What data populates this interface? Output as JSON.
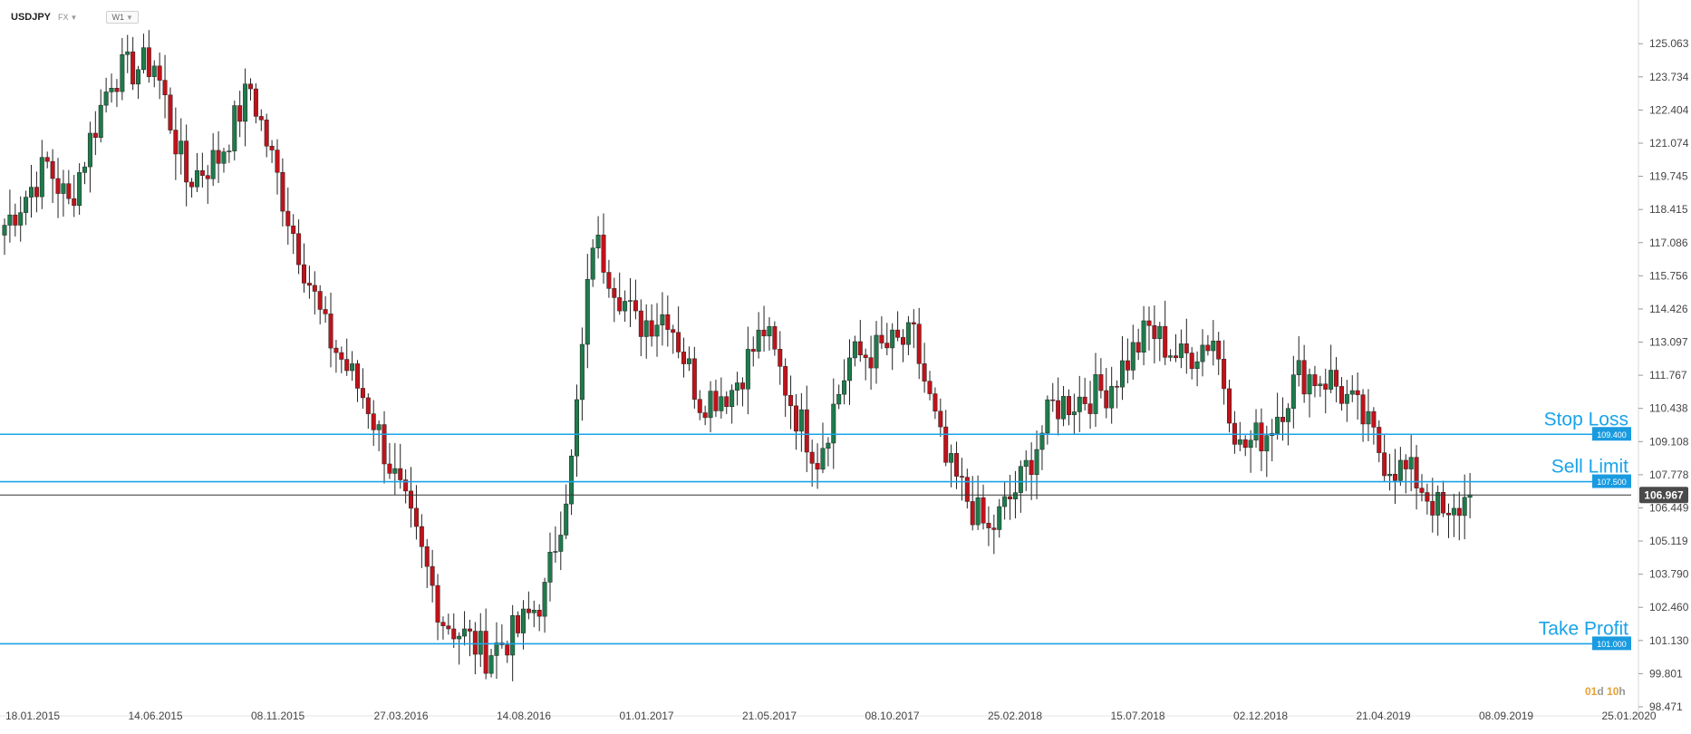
{
  "header": {
    "symbol": "USDJPY",
    "market": "FX",
    "timeframe": "W1"
  },
  "countdown": {
    "days": "01",
    "d_label": "d",
    "hours": "10",
    "h_label": "h"
  },
  "colors": {
    "up": "#1e7b4b",
    "down": "#c1121a",
    "level_line": "#1aa3e8",
    "current_price_bg": "#4a4a4a",
    "axis_text": "#444444"
  },
  "chart_data": {
    "type": "candlestick",
    "title": "",
    "y_ticks": [
      "125.063",
      "123.734",
      "122.404",
      "121.074",
      "119.745",
      "118.415",
      "117.086",
      "115.756",
      "114.426",
      "113.097",
      "111.767",
      "110.438",
      "109.108",
      "107.778",
      "106.449",
      "105.119",
      "103.790",
      "102.460",
      "101.130",
      "99.801",
      "98.471"
    ],
    "ylim": [
      98.471,
      125.726
    ],
    "x_labels": [
      "18.01.2015",
      "14.06.2015",
      "08.11.2015",
      "27.03.2016",
      "14.08.2016",
      "01.01.2017",
      "21.05.2017",
      "08.10.2017",
      "25.02.2018",
      "15.07.2018",
      "02.12.2018",
      "21.04.2019",
      "08.09.2019",
      "25.01.2020"
    ],
    "levels": [
      {
        "name": "Stop Loss",
        "price": 109.4,
        "label": "109.400"
      },
      {
        "name": "Sell Limit",
        "price": 107.5,
        "label": "107.500"
      },
      {
        "name": "Take Profit",
        "price": 101.0,
        "label": "101.000"
      }
    ],
    "current_price": {
      "value": 106.967,
      "label": "106.967"
    },
    "anchors": [
      {
        "i": 0,
        "v": 117.8
      },
      {
        "i": 8,
        "v": 120.2
      },
      {
        "i": 12,
        "v": 118.6
      },
      {
        "i": 20,
        "v": 123.8
      },
      {
        "i": 28,
        "v": 124.3
      },
      {
        "i": 34,
        "v": 119.6
      },
      {
        "i": 40,
        "v": 120.5
      },
      {
        "i": 46,
        "v": 123.3
      },
      {
        "i": 53,
        "v": 118.2
      },
      {
        "i": 60,
        "v": 113.5
      },
      {
        "i": 68,
        "v": 110.6
      },
      {
        "i": 74,
        "v": 107.0
      },
      {
        "i": 82,
        "v": 102.0
      },
      {
        "i": 90,
        "v": 100.6
      },
      {
        "i": 96,
        "v": 101.5
      },
      {
        "i": 101,
        "v": 103.0
      },
      {
        "i": 106,
        "v": 108.2
      },
      {
        "i": 110,
        "v": 117.3
      },
      {
        "i": 118,
        "v": 113.8
      },
      {
        "i": 124,
        "v": 114.3
      },
      {
        "i": 130,
        "v": 110.8
      },
      {
        "i": 136,
        "v": 111.2
      },
      {
        "i": 142,
        "v": 113.6
      },
      {
        "i": 148,
        "v": 110.2
      },
      {
        "i": 152,
        "v": 108.5
      },
      {
        "i": 158,
        "v": 112.4
      },
      {
        "i": 164,
        "v": 112.8
      },
      {
        "i": 170,
        "v": 113.2
      },
      {
        "i": 176,
        "v": 108.2
      },
      {
        "i": 184,
        "v": 105.4
      },
      {
        "i": 190,
        "v": 107.5
      },
      {
        "i": 196,
        "v": 110.5
      },
      {
        "i": 206,
        "v": 111.2
      },
      {
        "i": 214,
        "v": 113.6
      },
      {
        "i": 220,
        "v": 112.4
      },
      {
        "i": 226,
        "v": 113.3
      },
      {
        "i": 231,
        "v": 108.8
      },
      {
        "i": 236,
        "v": 109.5
      },
      {
        "i": 242,
        "v": 111.8
      },
      {
        "i": 248,
        "v": 111.6
      },
      {
        "i": 254,
        "v": 110.0
      },
      {
        "i": 258,
        "v": 108.4
      },
      {
        "i": 264,
        "v": 107.6
      },
      {
        "i": 268,
        "v": 106.4
      },
      {
        "i": 270,
        "v": 105.7
      },
      {
        "i": 272,
        "v": 106.5
      },
      {
        "i": 274,
        "v": 106.97
      }
    ]
  }
}
